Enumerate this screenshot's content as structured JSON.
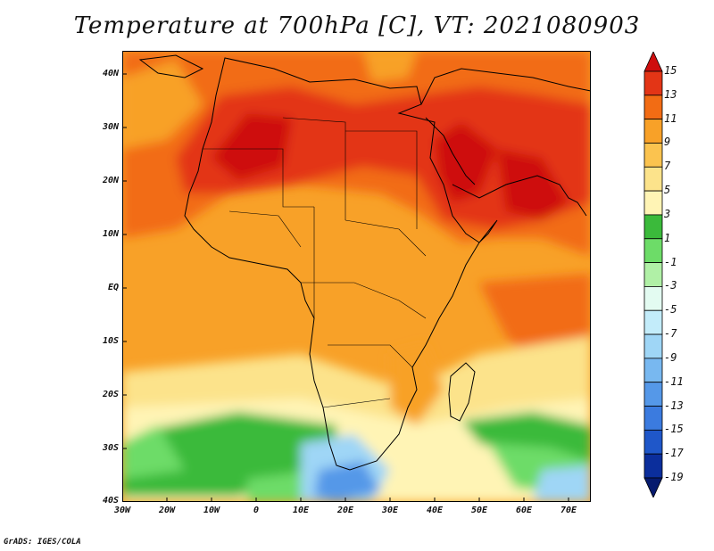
{
  "title": "Temperature at 700hPa [C], VT: 2021080903",
  "credit": "GrADS: IGES/COLA",
  "lat_labels": [
    "40N",
    "30N",
    "20N",
    "10N",
    "EQ",
    "10S",
    "20S",
    "30S",
    "40S"
  ],
  "lon_labels": [
    "30W",
    "20W",
    "10W",
    "0",
    "10E",
    "20E",
    "30E",
    "40E",
    "50E",
    "60E",
    "70E"
  ],
  "colorbar": {
    "labels": [
      "15",
      "13",
      "11",
      "9",
      "7",
      "5",
      "3",
      "1",
      "-1",
      "-3",
      "-5",
      "-7",
      "-9",
      "-11",
      "-13",
      "-15",
      "-17",
      "-19"
    ],
    "colors": [
      "#ce0e0e",
      "#e33516",
      "#f26c14",
      "#f8a128",
      "#fbc34f",
      "#fce38b",
      "#fff4b5",
      "#3bba3b",
      "#6ddc68",
      "#b0f0a6",
      "#e3fbf1",
      "#c3ecfa",
      "#9fd6f6",
      "#78b8f0",
      "#5598e8",
      "#3b7bdf",
      "#1f57c9",
      "#0b2e9c",
      "#061a6e"
    ]
  }
}
